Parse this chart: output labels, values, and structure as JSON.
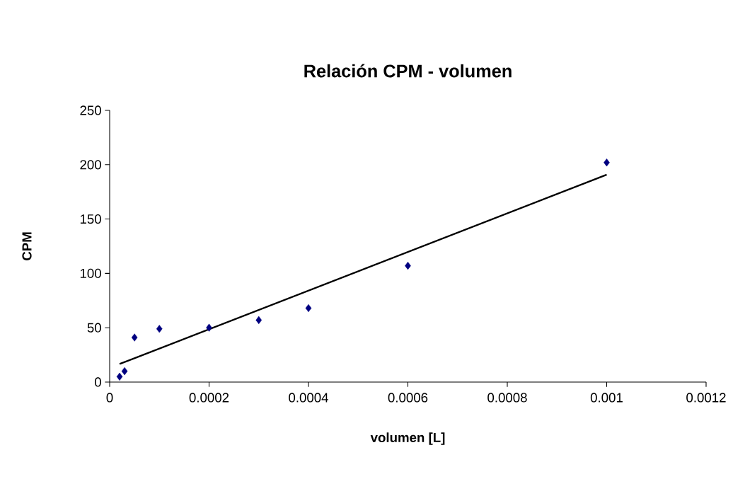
{
  "chart_data": {
    "type": "scatter",
    "title": "Relación CPM - volumen",
    "xlabel": "volumen [L]",
    "ylabel": "CPM",
    "xlim": [
      0,
      0.0012
    ],
    "xticks": [
      0,
      0.0002,
      0.0004,
      0.0006,
      0.0008,
      0.001,
      0.0012
    ],
    "ylim": [
      0,
      250
    ],
    "yticks": [
      0,
      50,
      100,
      150,
      200,
      250
    ],
    "grid": false,
    "marker": "diamond",
    "series": [
      {
        "color": "#000080",
        "x": [
          2e-05,
          3e-05,
          5e-05,
          0.0001,
          0.0002,
          0.0003,
          0.0004,
          0.0006,
          0.001
        ],
        "values": [
          5,
          10,
          41,
          49,
          50,
          57,
          68,
          107,
          202
        ]
      },
      {
        "type": "line",
        "color": "#000000",
        "marker": "none",
        "line_style": "solid",
        "x": [
          2e-05,
          0.001
        ],
        "values": [
          16.6,
          190.8
        ]
      }
    ]
  }
}
